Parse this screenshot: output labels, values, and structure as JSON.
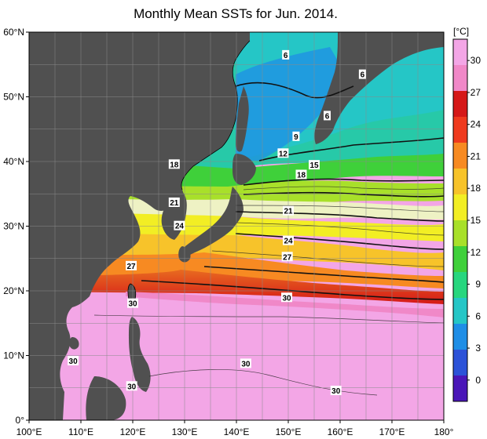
{
  "title": "Monthly Mean SSTs for Jun. 2014.",
  "unit": "[°C]",
  "colors": {
    "land": "#505050",
    "grid": "#8a8a8a",
    "scale": [
      "#4a16b8",
      "#2c52d8",
      "#1f8ee6",
      "#25c6c6",
      "#27d67e",
      "#3fd03a",
      "#a8e02a",
      "#f2ee24",
      "#f7c32a",
      "#f78a22",
      "#ef3a1e",
      "#d51818",
      "#f088c8",
      "#f3a6e6"
    ]
  },
  "map": {
    "lon_labels": [
      "100°E",
      "110°E",
      "120°E",
      "130°E",
      "140°E",
      "150°E",
      "160°E",
      "170°E",
      "180°"
    ],
    "lat_labels": [
      "60°N",
      "50°N",
      "40°N",
      "30°N",
      "20°N",
      "10°N",
      "0°"
    ],
    "isotherm_labels": [
      {
        "text": "6",
        "lon": 149.5,
        "lat": 56.5
      },
      {
        "text": "6",
        "lon": 164.3,
        "lat": 53.5
      },
      {
        "text": "6",
        "lon": 157.5,
        "lat": 47.1
      },
      {
        "text": "9",
        "lon": 151.5,
        "lat": 43.9
      },
      {
        "text": "12",
        "lon": 149.0,
        "lat": 41.3
      },
      {
        "text": "15",
        "lon": 155.0,
        "lat": 39.5
      },
      {
        "text": "18",
        "lon": 128.0,
        "lat": 39.6
      },
      {
        "text": "18",
        "lon": 152.5,
        "lat": 38.0
      },
      {
        "text": "21",
        "lon": 128.0,
        "lat": 33.7
      },
      {
        "text": "21",
        "lon": 150.0,
        "lat": 32.4
      },
      {
        "text": "24",
        "lon": 129.0,
        "lat": 30.1
      },
      {
        "text": "24",
        "lon": 150.0,
        "lat": 27.8
      },
      {
        "text": "27",
        "lon": 149.8,
        "lat": 25.3
      },
      {
        "text": "27",
        "lon": 119.7,
        "lat": 23.9
      },
      {
        "text": "30",
        "lon": 120.0,
        "lat": 18.1
      },
      {
        "text": "30",
        "lon": 149.7,
        "lat": 19.0
      },
      {
        "text": "30",
        "lon": 108.5,
        "lat": 9.2
      },
      {
        "text": "30",
        "lon": 141.8,
        "lat": 8.8
      },
      {
        "text": "30",
        "lon": 119.8,
        "lat": 5.3
      },
      {
        "text": "30",
        "lon": 159.2,
        "lat": 4.6
      }
    ]
  },
  "colorbar": {
    "min": -2,
    "max": 32,
    "ticks": [
      "0",
      "3",
      "6",
      "9",
      "12",
      "15",
      "18",
      "21",
      "24",
      "27",
      "30"
    ]
  }
}
